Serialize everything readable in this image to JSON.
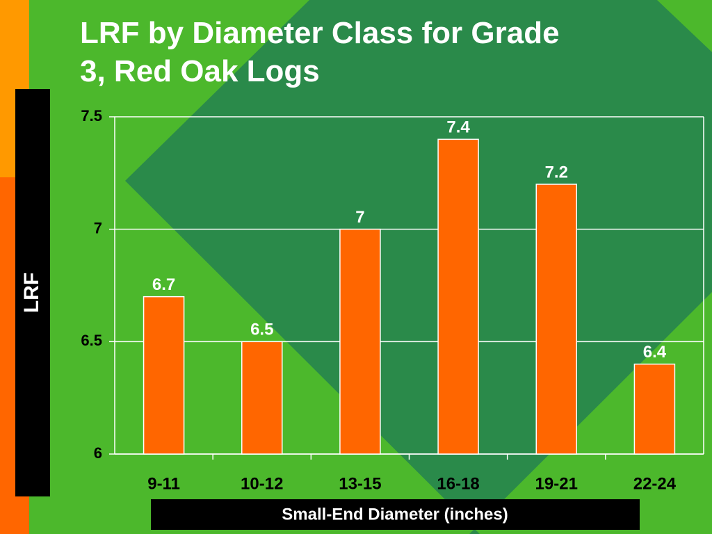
{
  "chart_data": {
    "type": "bar",
    "title": "LRF by Diameter Class for Grade 3, Red Oak Logs",
    "x_label": "Small-End Diameter (inches)",
    "y_label": "LRF",
    "categories": [
      "9-11",
      "10-12",
      "13-15",
      "16-18",
      "19-21",
      "22-24"
    ],
    "values": [
      6.7,
      6.5,
      7,
      7.4,
      7.2,
      6.4
    ],
    "color": "#ff6600",
    "ylim": [
      6,
      7.5
    ],
    "yticks": [
      6,
      6.5,
      7,
      7.5
    ],
    "grid": true
  }
}
